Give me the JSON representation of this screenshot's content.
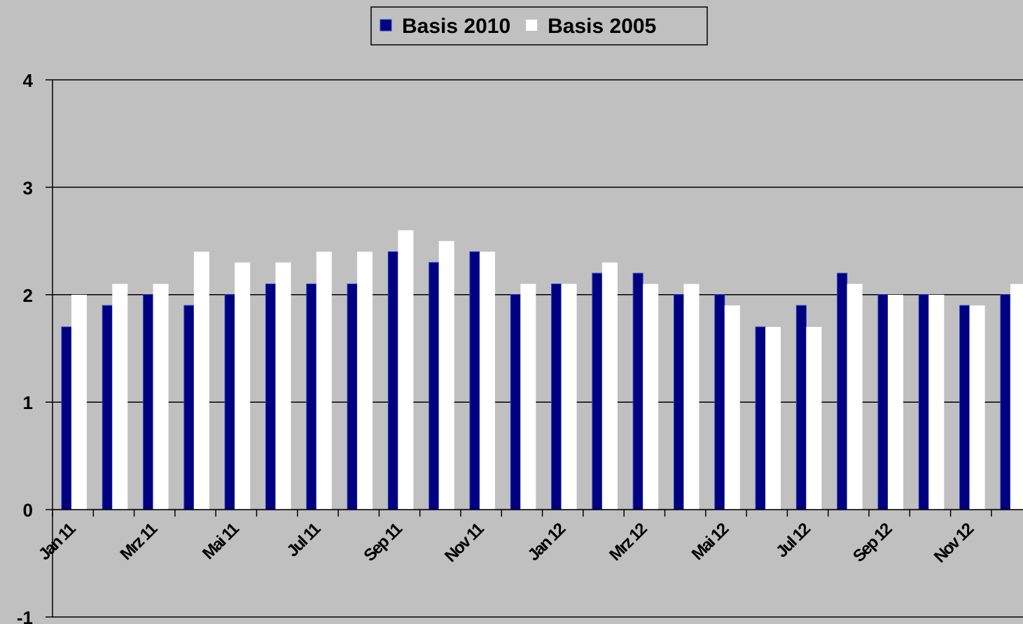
{
  "chart_data": {
    "type": "bar",
    "categories": [
      "Jan 11",
      null,
      "Mrz 11",
      null,
      "Mai 11",
      null,
      "Jul 11",
      null,
      "Sep 11",
      null,
      "Nov 11",
      null,
      "Jan 12",
      null,
      "Mrz 12",
      null,
      "Mai 12",
      null,
      "Jul 12",
      null,
      "Sep 12",
      null,
      "Nov 12",
      null
    ],
    "series": [
      {
        "name": "Basis 2010",
        "color": "#000080",
        "values": [
          1.7,
          1.9,
          2.0,
          1.9,
          2.0,
          2.1,
          2.1,
          2.1,
          2.4,
          2.3,
          2.4,
          2.0,
          2.1,
          2.2,
          2.2,
          2.0,
          2.0,
          1.7,
          1.9,
          2.2,
          2.0,
          2.0,
          1.9,
          2.0
        ]
      },
      {
        "name": "Basis 2005",
        "color": "#ffffff",
        "values": [
          2.0,
          2.1,
          2.1,
          2.4,
          2.3,
          2.3,
          2.4,
          2.4,
          2.6,
          2.5,
          2.4,
          2.1,
          2.1,
          2.3,
          2.1,
          2.1,
          1.9,
          1.7,
          1.7,
          2.1,
          2.0,
          2.0,
          1.9,
          2.1
        ]
      }
    ],
    "ylim": [
      -1,
      4
    ],
    "yticks": [
      -1,
      0,
      1,
      2,
      3,
      4
    ],
    "grid": true,
    "legend": "top"
  }
}
